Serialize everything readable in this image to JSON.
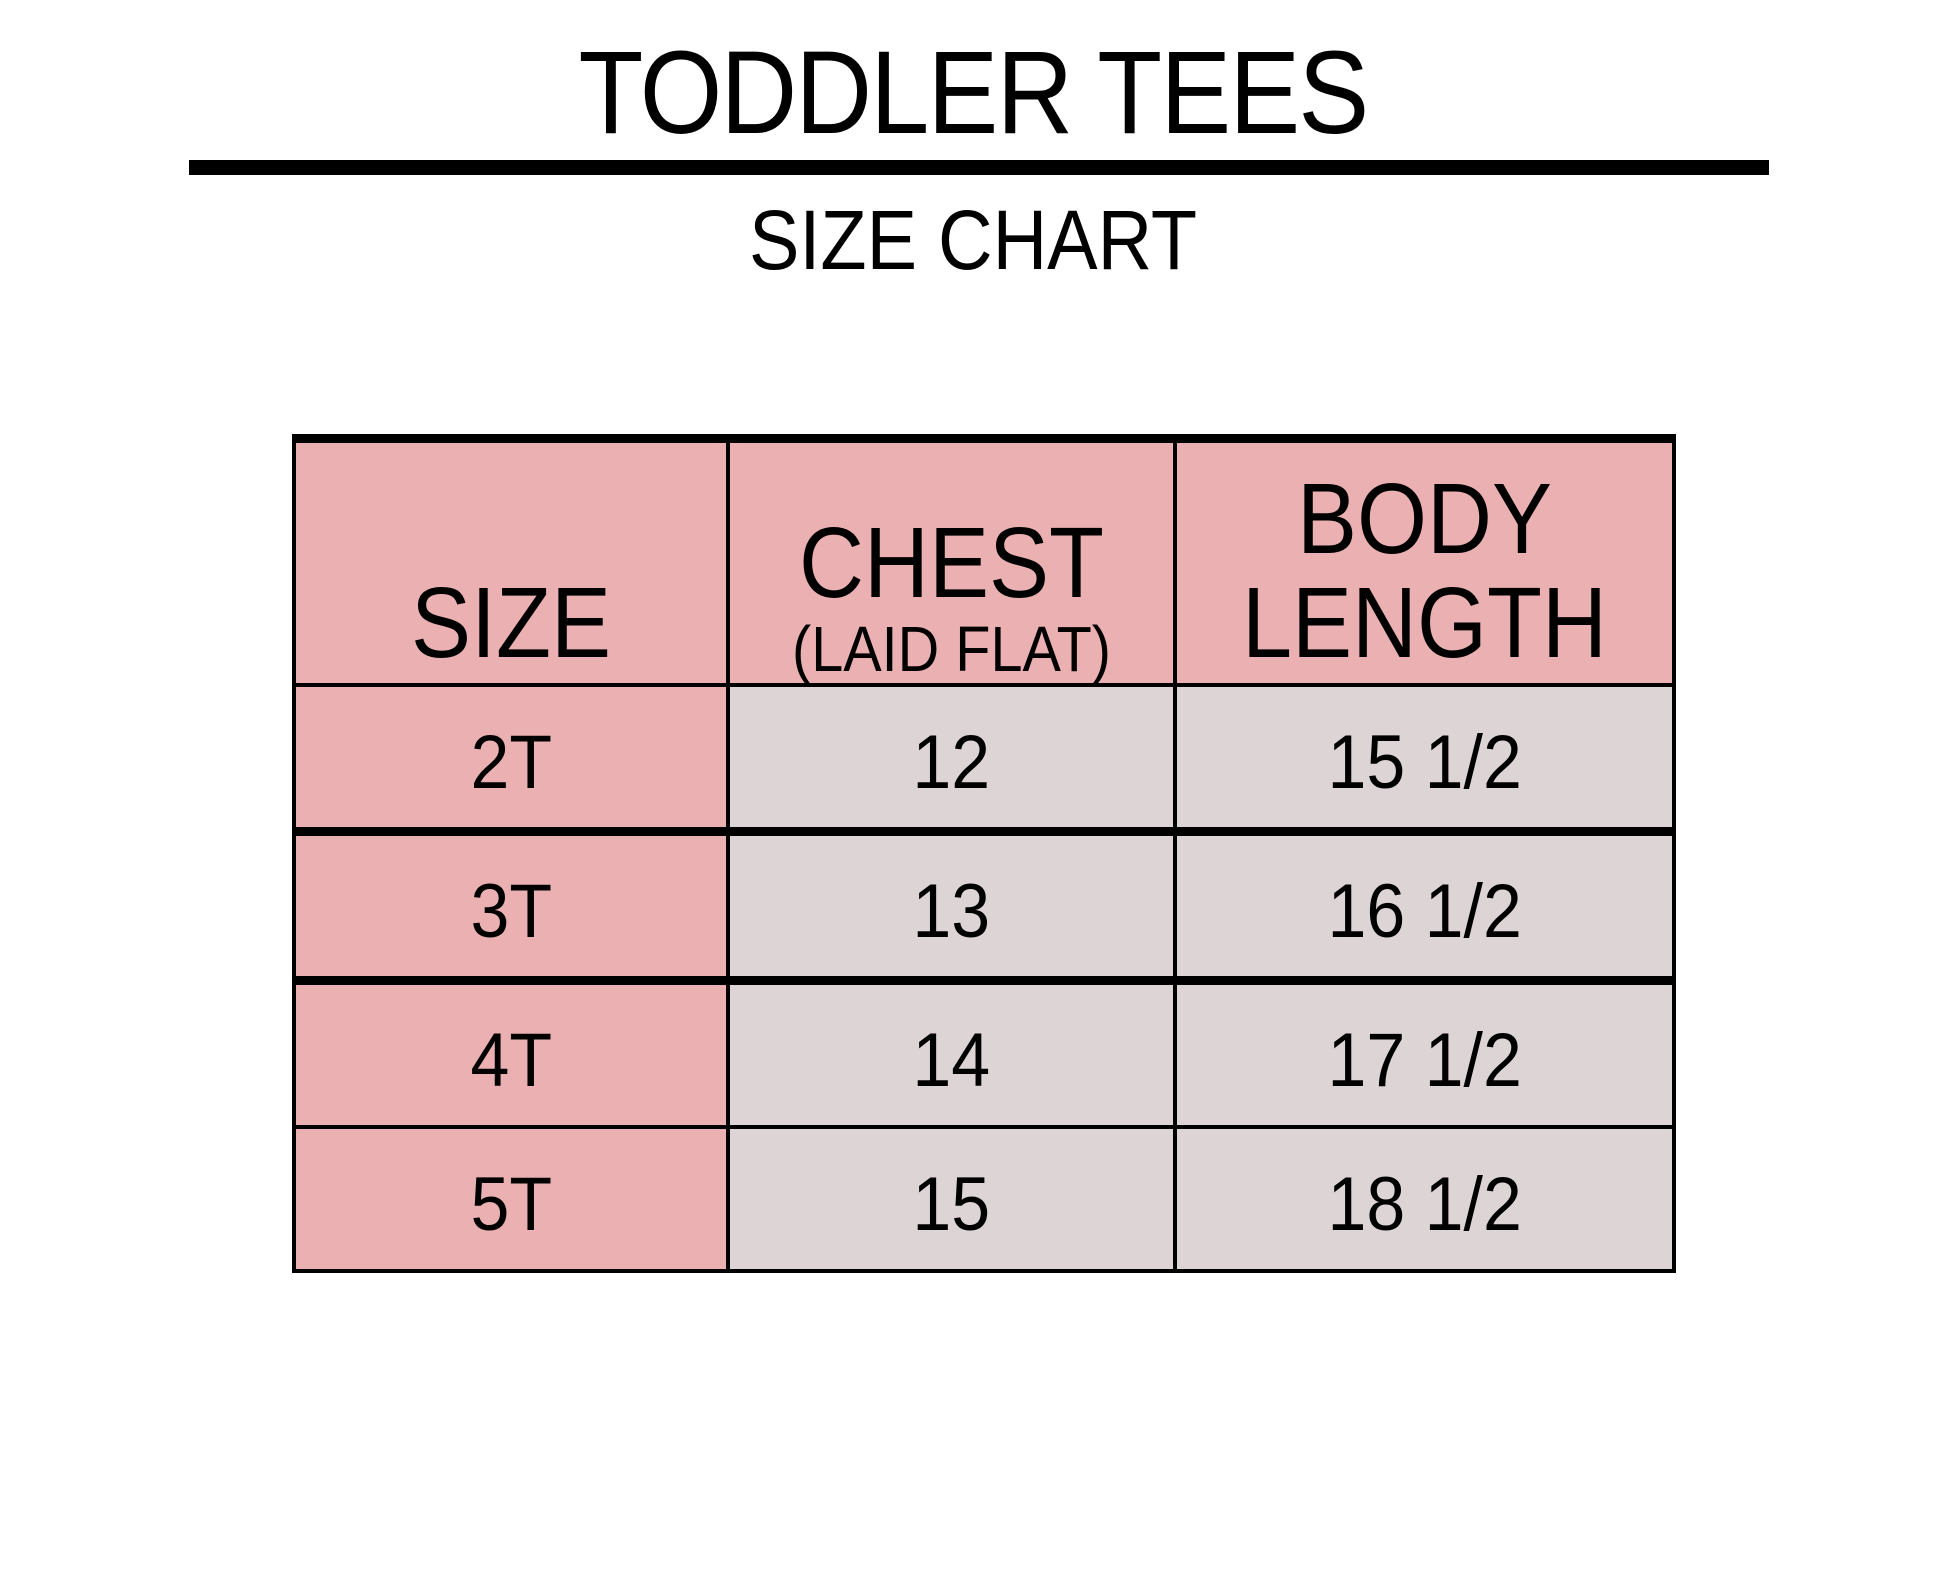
{
  "title": "TODDLER TEES",
  "subtitle": "SIZE CHART",
  "colors": {
    "header_bg": "#ebb0b1",
    "cell_bg": "#dcd4d5",
    "border": "#000000"
  },
  "table": {
    "headers": [
      {
        "main": "SIZE"
      },
      {
        "main": "CHEST",
        "sub": "(LAID FLAT)"
      },
      {
        "main_line1": "BODY",
        "main_line2": "LENGTH"
      }
    ],
    "rows": [
      {
        "size": "2T",
        "chest": "12",
        "body_length": "15 1/2"
      },
      {
        "size": "3T",
        "chest": "13",
        "body_length": "16 1/2"
      },
      {
        "size": "4T",
        "chest": "14",
        "body_length": "17 1/2"
      },
      {
        "size": "5T",
        "chest": "15",
        "body_length": "18 1/2"
      }
    ]
  }
}
